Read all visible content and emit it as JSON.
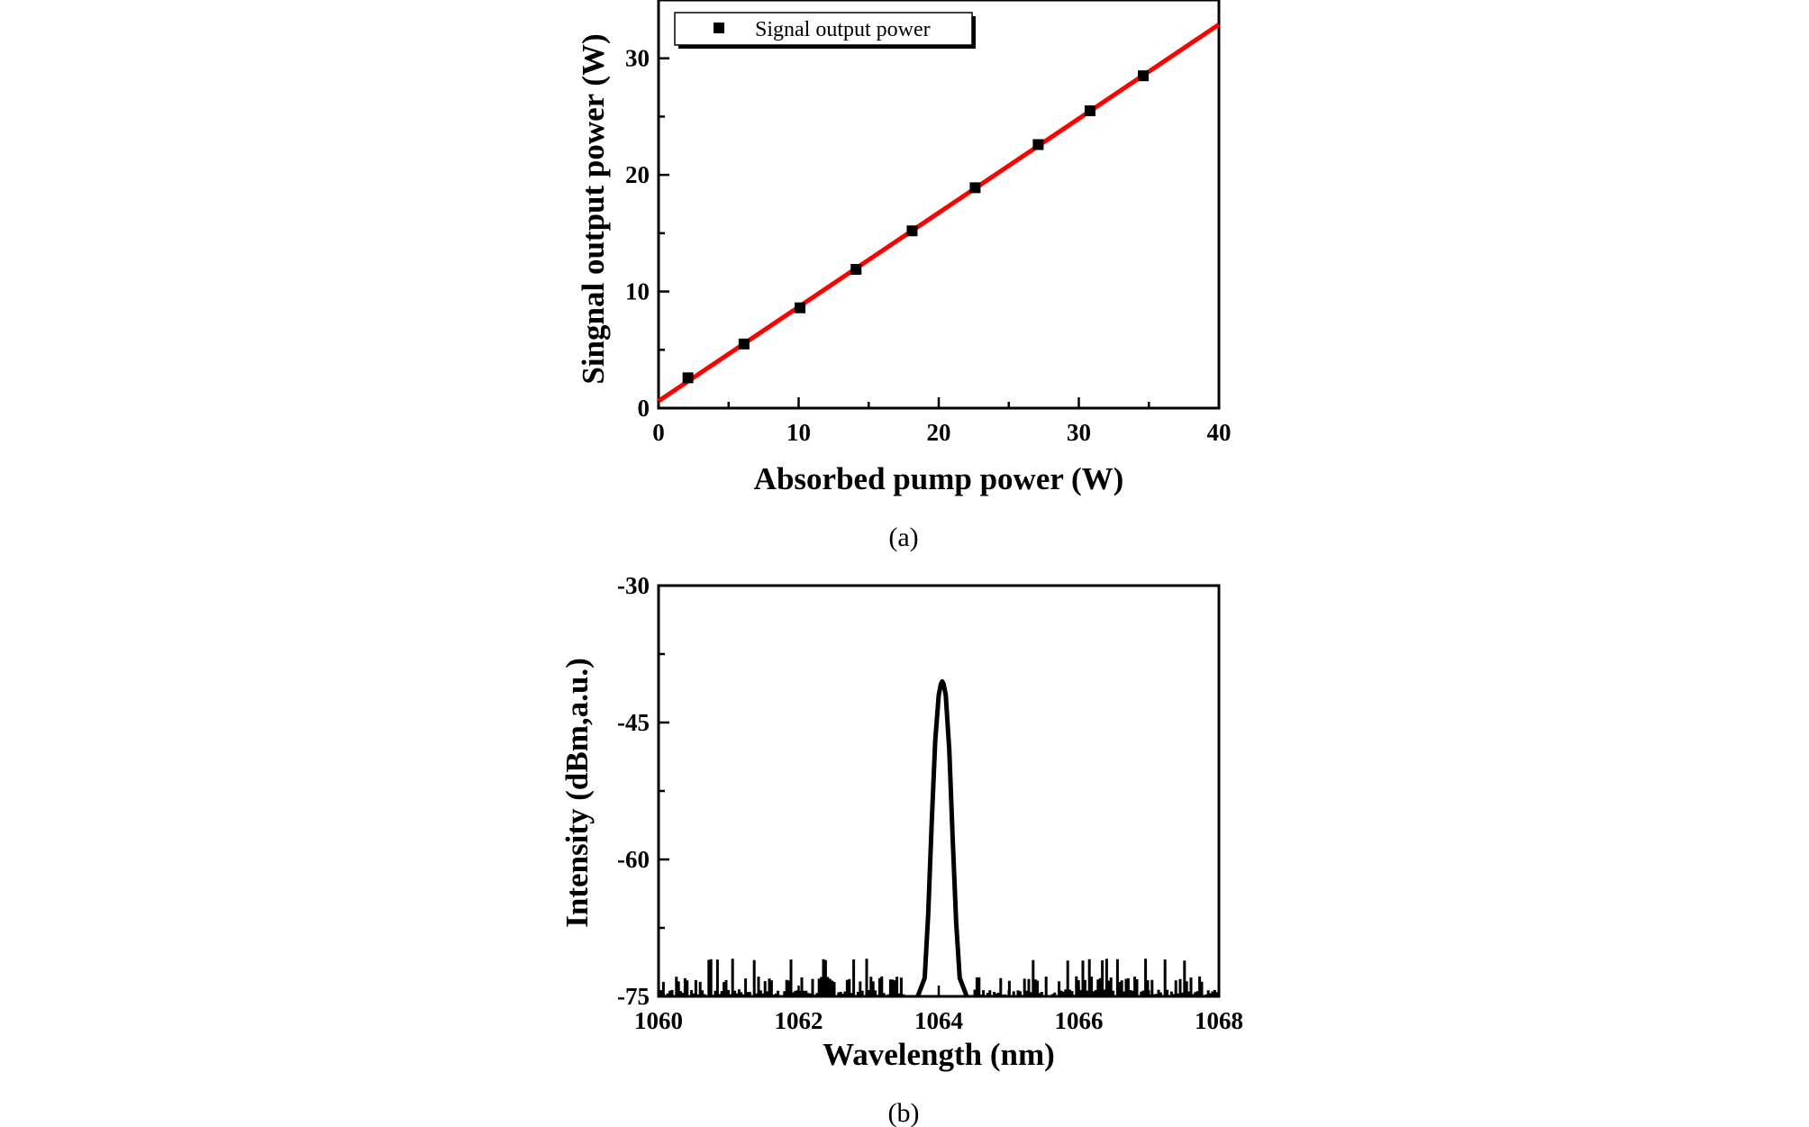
{
  "chart_data": [
    {
      "type": "scatter",
      "caption": "(a)",
      "xlabel": "Absorbed pump power (W)",
      "ylabel": "Singnal output power (W)",
      "xlim": [
        0,
        40
      ],
      "ylim": [
        0,
        35
      ],
      "xticks": [
        0,
        10,
        20,
        30,
        40
      ],
      "yticks": [
        0,
        10,
        20,
        30
      ],
      "grid": false,
      "legend_position": "top-left",
      "series": [
        {
          "name": "Signal output power",
          "marker": "square",
          "color": "#000000",
          "x": [
            2.1,
            6.1,
            10.1,
            14.1,
            18.1,
            22.6,
            27.1,
            30.8,
            34.6
          ],
          "y": [
            2.6,
            5.5,
            8.6,
            11.9,
            15.2,
            18.9,
            22.6,
            25.5,
            28.5
          ]
        }
      ],
      "fit_line": {
        "color": "#ff0000",
        "x": [
          0,
          40
        ],
        "y": [
          0.6,
          32.9
        ]
      }
    },
    {
      "type": "line",
      "caption": "(b)",
      "xlabel": "Wavelength (nm)",
      "ylabel": "Intensity (dBm,a.u.)",
      "xlim": [
        1060,
        1068
      ],
      "ylim": [
        -75,
        -30
      ],
      "xticks": [
        1060,
        1062,
        1064,
        1066,
        1068
      ],
      "yticks": [
        -75,
        -60,
        -45,
        -30
      ],
      "grid": false,
      "series": [
        {
          "color": "#000000",
          "peak_wavelength": 1064.05,
          "peak_intensity": -40.5,
          "noise_floor": -75,
          "x": [
            1063.7,
            1063.8,
            1063.85,
            1063.9,
            1063.95,
            1064.0,
            1064.03,
            1064.05,
            1064.07,
            1064.1,
            1064.15,
            1064.2,
            1064.25,
            1064.3,
            1064.4
          ],
          "y": [
            -75,
            -73,
            -66,
            -56,
            -47,
            -42,
            -40.8,
            -40.5,
            -40.8,
            -42,
            -48,
            -58,
            -67,
            -73,
            -75
          ]
        }
      ]
    }
  ]
}
